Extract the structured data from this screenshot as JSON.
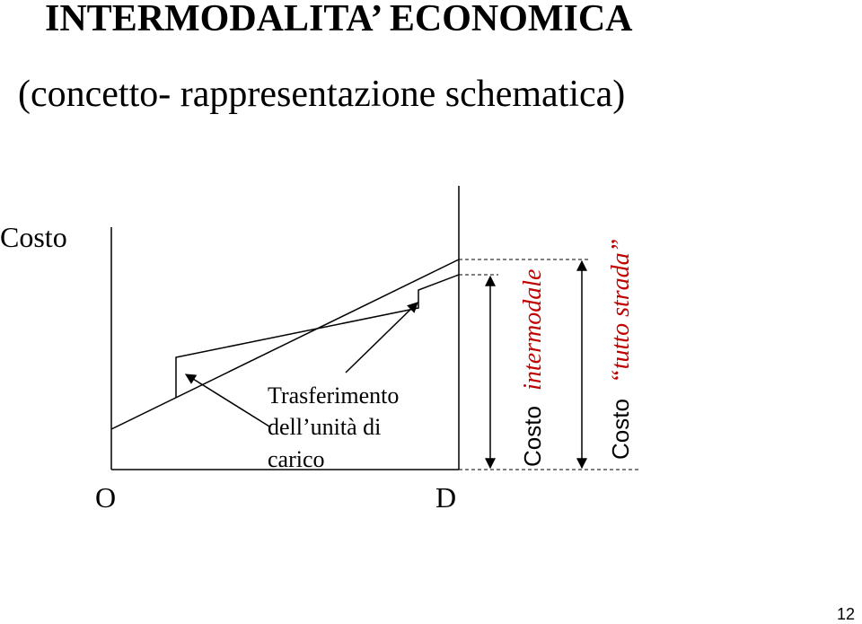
{
  "header": {
    "title": "INTERMODALITA’ ECONOMICA",
    "subtitle": "(concetto- rappresentazione schematica)"
  },
  "diagram": {
    "y_axis_label": "Costo",
    "origin_label": "O",
    "destination_label": "D",
    "annotation": [
      "Trasferimento",
      "dell’unità di",
      "carico"
    ],
    "intermodal_label": {
      "prefix": "Costo",
      "text": "intermodale"
    },
    "road_label": {
      "prefix": "Costo",
      "text": "“tutto strada”"
    }
  },
  "footer": {
    "page_number": "12"
  }
}
